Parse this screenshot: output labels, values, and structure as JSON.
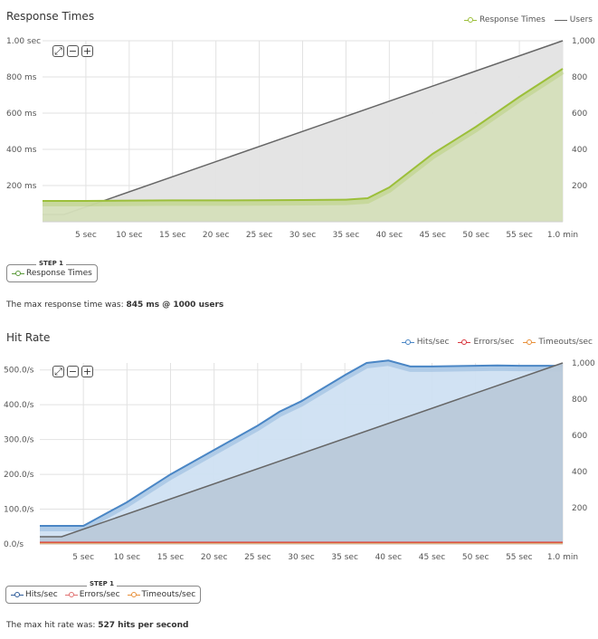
{
  "charts": {
    "response": {
      "title": "Response Times",
      "legend": [
        {
          "label": "Response Times",
          "color": "#9cbf3a",
          "marker": "circle"
        },
        {
          "label": "Users",
          "color": "#666666",
          "marker": "line"
        }
      ],
      "step_label": "STEP 1",
      "step_items": [
        {
          "label": "Response Times",
          "color": "#5a9a3a"
        }
      ],
      "summary_prefix": "The max response time was: ",
      "summary_value": "845 ms @ 1000 users",
      "zoom": [
        "⤢",
        "−",
        "+"
      ]
    },
    "hits": {
      "title": "Hit Rate",
      "legend": [
        {
          "label": "Hits/sec",
          "color": "#4a86c5",
          "marker": "circle"
        },
        {
          "label": "Errors/sec",
          "color": "#d9363e",
          "marker": "circle"
        },
        {
          "label": "Timeouts/sec",
          "color": "#e8903a",
          "marker": "circle"
        }
      ],
      "step_label": "STEP 1",
      "step_items": [
        {
          "label": "Hits/sec",
          "color": "#2f5d9a"
        },
        {
          "label": "Errors/sec",
          "color": "#e07070"
        },
        {
          "label": "Timeouts/sec",
          "color": "#e8903a"
        }
      ],
      "summary_prefix": "The max hit rate was: ",
      "summary_value": "527 hits per second",
      "zoom": [
        "⤢",
        "−",
        "+"
      ]
    }
  },
  "chart_data": [
    {
      "type": "area",
      "title": "Response Times",
      "x_tick_labels": [
        "5 sec",
        "10 sec",
        "15 sec",
        "20 sec",
        "25 sec",
        "30 sec",
        "35 sec",
        "40 sec",
        "45 sec",
        "50 sec",
        "55 sec",
        "1.0 min"
      ],
      "x_ticks": [
        5,
        10,
        15,
        20,
        25,
        30,
        35,
        40,
        45,
        50,
        55,
        60
      ],
      "xlim": [
        0,
        60
      ],
      "y_left_tick_labels": [
        "200 ms",
        "400 ms",
        "600 ms",
        "800 ms",
        "1.00 sec"
      ],
      "y_left_ticks": [
        200,
        400,
        600,
        800,
        1000
      ],
      "y_left_lim": [
        0,
        1000
      ],
      "y_right_tick_labels": [
        "200",
        "400",
        "600",
        "800",
        "1,000"
      ],
      "y_right_ticks": [
        200,
        400,
        600,
        800,
        1000
      ],
      "y_right_lim": [
        0,
        1000
      ],
      "series": [
        {
          "name": "Response Times",
          "axis": "left",
          "color": "#9cbf3a",
          "fill": "#d5dfba",
          "x": [
            0,
            2.5,
            5,
            10,
            15,
            20,
            25,
            30,
            35,
            37.5,
            40,
            45,
            50,
            55,
            60
          ],
          "y": [
            115,
            115,
            115,
            117,
            118,
            118,
            119,
            120,
            122,
            130,
            190,
            375,
            525,
            690,
            845
          ]
        },
        {
          "name": "Users",
          "axis": "right",
          "color": "#666666",
          "fill": "#e3e3e3",
          "x": [
            0,
            2.5,
            60
          ],
          "y": [
            40,
            40,
            1000
          ]
        }
      ],
      "grid": true
    },
    {
      "type": "area",
      "title": "Hit Rate",
      "x_tick_labels": [
        "5 sec",
        "10 sec",
        "15 sec",
        "20 sec",
        "25 sec",
        "30 sec",
        "35 sec",
        "40 sec",
        "45 sec",
        "50 sec",
        "55 sec",
        "1.0 min"
      ],
      "x_ticks": [
        5,
        10,
        15,
        20,
        25,
        30,
        35,
        40,
        45,
        50,
        55,
        60
      ],
      "xlim": [
        0,
        60
      ],
      "y_left_tick_labels": [
        "0.0/s",
        "100.0/s",
        "200.0/s",
        "300.0/s",
        "400.0/s",
        "500.0/s"
      ],
      "y_left_ticks": [
        0,
        100,
        200,
        300,
        400,
        500
      ],
      "y_left_lim": [
        0,
        520
      ],
      "y_right_tick_labels": [
        "200",
        "400",
        "600",
        "800",
        "1,000"
      ],
      "y_right_ticks": [
        200,
        400,
        600,
        800,
        1000
      ],
      "y_right_lim": [
        0,
        1000
      ],
      "series": [
        {
          "name": "Hits/sec",
          "axis": "left",
          "color": "#4a86c5",
          "fill": "#cfe0f2",
          "x": [
            0,
            5,
            10,
            15,
            20,
            25,
            27.5,
            30,
            35,
            37.5,
            40,
            42.5,
            45,
            50,
            52.5,
            55,
            57.5,
            60
          ],
          "y": [
            52,
            52,
            120,
            200,
            270,
            340,
            380,
            410,
            485,
            520,
            527,
            510,
            510,
            512,
            513,
            512,
            512,
            512
          ]
        },
        {
          "name": "Errors/sec",
          "axis": "left",
          "color": "#d9363e",
          "fill": "none",
          "x": [
            0,
            60
          ],
          "y": [
            4,
            4
          ]
        },
        {
          "name": "Timeouts/sec",
          "axis": "left",
          "color": "#e8903a",
          "fill": "none",
          "x": [
            0,
            60
          ],
          "y": [
            1,
            1
          ]
        },
        {
          "name": "Users",
          "axis": "right",
          "color": "#666666",
          "fill": "#b9c9d9",
          "x": [
            0,
            2.5,
            60
          ],
          "y": [
            40,
            40,
            1000
          ]
        }
      ],
      "grid": true
    }
  ]
}
